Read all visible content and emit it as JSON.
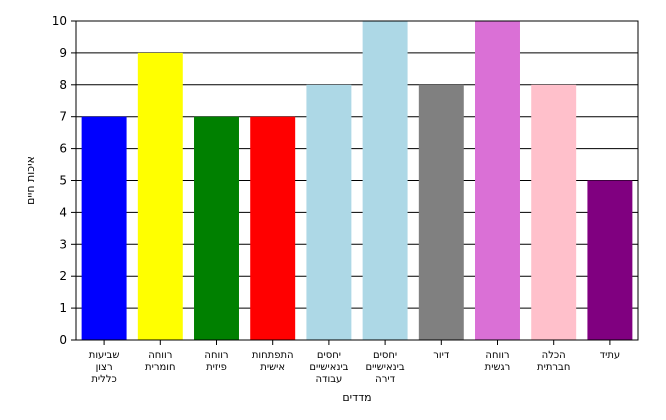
{
  "chart_data": {
    "type": "bar",
    "title": "",
    "xlabel": "מדדים",
    "ylabel": "איכות חיים",
    "ylim": [
      0,
      10
    ],
    "yticks": [
      0,
      1,
      2,
      3,
      4,
      5,
      6,
      7,
      8,
      9,
      10
    ],
    "grid": true,
    "legend": "none",
    "categories": [
      [
        "שביעות",
        "רצון",
        "כללית"
      ],
      [
        "רווחה",
        "חומרית"
      ],
      [
        "רווחה",
        "פיזית"
      ],
      [
        "התפתחות",
        "אישית"
      ],
      [
        "יחסים",
        "בינאישיים",
        "עבודה"
      ],
      [
        "יחסים",
        "בינאישיים",
        "דירה"
      ],
      [
        "דיור"
      ],
      [
        "רווחה",
        "רגשית"
      ],
      [
        "הכלה",
        "חברתית"
      ],
      [
        "עתיד"
      ]
    ],
    "values": [
      7,
      9,
      7,
      7,
      8,
      10,
      8,
      10,
      8,
      5
    ],
    "colors": [
      "#0000FF",
      "#FFFF00",
      "#008000",
      "#FF0000",
      "#ADD8E6",
      "#ADD8E6",
      "#808080",
      "#DA70D6",
      "#FFC0CB",
      "#800080"
    ]
  }
}
